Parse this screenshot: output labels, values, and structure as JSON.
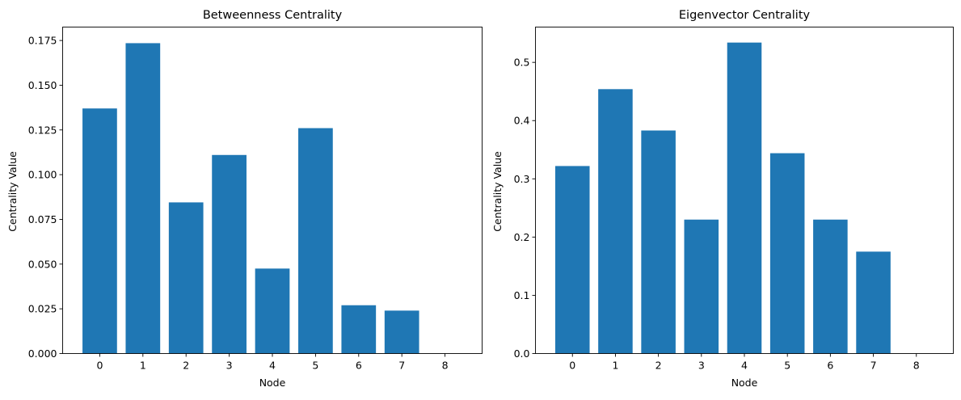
{
  "bar_color": "#1f77b4",
  "chart_data": [
    {
      "type": "bar",
      "title": "Betweenness Centrality",
      "xlabel": "Node",
      "ylabel": "Centrality Value",
      "categories": [
        "0",
        "1",
        "2",
        "3",
        "4",
        "5",
        "6",
        "7",
        "8"
      ],
      "values": [
        0.137,
        0.1735,
        0.0845,
        0.111,
        0.0475,
        0.126,
        0.027,
        0.024,
        0.0
      ],
      "ylim": [
        0,
        0.1825
      ],
      "yticks": [
        0.0,
        0.025,
        0.05,
        0.075,
        0.1,
        0.125,
        0.15,
        0.175
      ],
      "ytick_labels": [
        "0.000",
        "0.025",
        "0.050",
        "0.075",
        "0.100",
        "0.125",
        "0.150",
        "0.175"
      ],
      "grid": false,
      "legend": "none"
    },
    {
      "type": "bar",
      "title": "Eigenvector Centrality",
      "xlabel": "Node",
      "ylabel": "Centrality Value",
      "categories": [
        "0",
        "1",
        "2",
        "3",
        "4",
        "5",
        "6",
        "7",
        "8"
      ],
      "values": [
        0.322,
        0.454,
        0.383,
        0.23,
        0.534,
        0.344,
        0.23,
        0.175,
        0.0
      ],
      "ylim": [
        0,
        0.5606
      ],
      "yticks": [
        0.0,
        0.1,
        0.2,
        0.3,
        0.4,
        0.5
      ],
      "ytick_labels": [
        "0.0",
        "0.1",
        "0.2",
        "0.3",
        "0.4",
        "0.5"
      ],
      "grid": false,
      "legend": "none"
    }
  ]
}
